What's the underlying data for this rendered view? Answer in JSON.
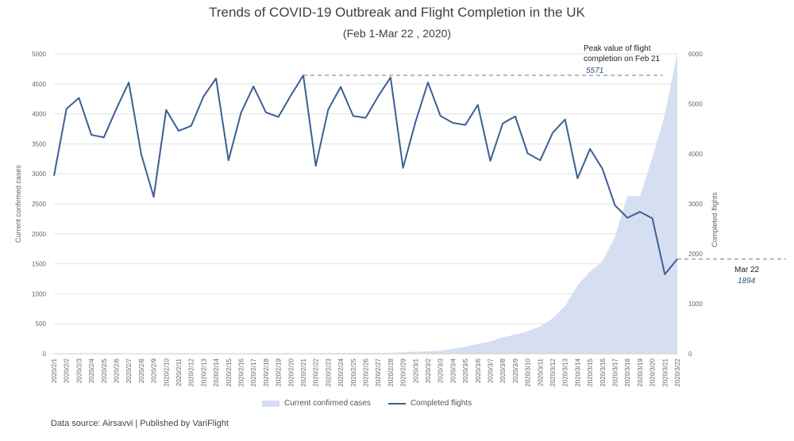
{
  "chart_data": {
    "type": "line",
    "title": "Trends of COVID-19 Outbreak and Flight Completion in the UK",
    "subtitle": "(Feb 1-Mar 22 , 2020)",
    "x": [
      "2020/2/1",
      "2020/2/2",
      "2020/2/3",
      "2020/2/4",
      "2020/2/5",
      "2020/2/6",
      "2020/2/7",
      "2020/2/8",
      "2020/2/9",
      "2020/2/10",
      "2020/2/11",
      "2020/2/12",
      "2020/2/13",
      "2020/2/14",
      "2020/2/15",
      "2020/2/16",
      "2020/2/17",
      "2020/2/18",
      "2020/2/19",
      "2020/2/20",
      "2020/2/21",
      "2020/2/22",
      "2020/2/23",
      "2020/2/24",
      "2020/2/25",
      "2020/2/26",
      "2020/2/27",
      "2020/2/28",
      "2020/2/29",
      "2020/3/1",
      "2020/3/2",
      "2020/3/3",
      "2020/3/4",
      "2020/3/5",
      "2020/3/6",
      "2020/3/7",
      "2020/3/8",
      "2020/3/9",
      "2020/3/10",
      "2020/3/11",
      "2020/3/12",
      "2020/3/13",
      "2020/3/14",
      "2020/3/15",
      "2020/3/16",
      "2020/3/17",
      "2020/3/18",
      "2020/3/19",
      "2020/3/20",
      "2020/3/21",
      "2020/3/22"
    ],
    "series": [
      {
        "name": "Current confirmed cases",
        "type": "area",
        "axis": "left",
        "color": "#d6def2",
        "values": [
          2,
          2,
          8,
          8,
          8,
          9,
          3,
          3,
          3,
          8,
          8,
          8,
          9,
          9,
          9,
          9,
          9,
          9,
          9,
          9,
          9,
          9,
          13,
          13,
          13,
          13,
          13,
          13,
          23,
          35,
          40,
          51,
          85,
          115,
          163,
          206,
          273,
          319,
          373,
          456,
          590,
          798,
          1140,
          1372,
          1543,
          1950,
          2630,
          2626,
          3269,
          3983,
          5018
        ]
      },
      {
        "name": "Completed flights",
        "type": "line",
        "axis": "right",
        "color": "#3d5f95",
        "values": [
          3560,
          4900,
          5120,
          4380,
          4330,
          4900,
          5430,
          3990,
          3140,
          4880,
          4460,
          4560,
          5150,
          5510,
          3870,
          4820,
          5350,
          4830,
          4740,
          5170,
          5571,
          3760,
          4890,
          5340,
          4760,
          4720,
          5150,
          5530,
          3720,
          4640,
          5430,
          4760,
          4620,
          4580,
          4980,
          3860,
          4610,
          4750,
          4010,
          3870,
          4420,
          4690,
          3510,
          4100,
          3700,
          2970,
          2720,
          2840,
          2710,
          1590,
          1894
        ]
      }
    ],
    "ylabel_left": "Current confirmed cases",
    "ylabel_right": "Completed flights",
    "ylim_left": [
      0,
      5000
    ],
    "ylim_right": [
      0,
      6000
    ],
    "yticks_left": [
      0,
      500,
      1000,
      1500,
      2000,
      2500,
      3000,
      3500,
      4000,
      4500,
      5000
    ],
    "yticks_right": [
      0,
      1000,
      2000,
      3000,
      4000,
      5000,
      6000
    ],
    "grid": true,
    "legend_position": "bottom",
    "annotations": [
      {
        "label": "Peak value of flight",
        "label2": "completion on Feb 21",
        "value": "5571",
        "index": 20,
        "series": "Completed flights"
      },
      {
        "label": "Mar 22",
        "value": "1894",
        "index": 50,
        "series": "Completed flights"
      }
    ]
  },
  "legend": {
    "cases_label": "Current confirmed cases",
    "flights_label": "Completed flights"
  },
  "footer": {
    "source": "Data source: Airsavvi  |  Published by VariFlight"
  }
}
